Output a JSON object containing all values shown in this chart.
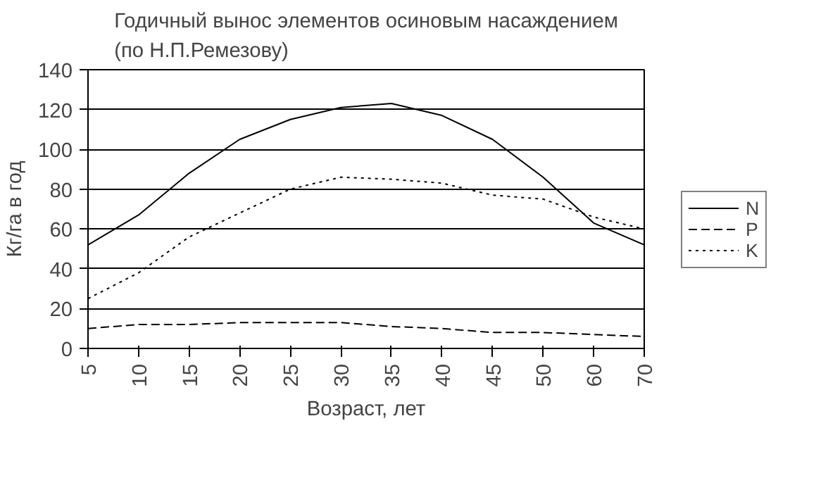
{
  "chart_data": {
    "type": "line",
    "title": "Годичный вынос элементов осиновым насаждением\n(по Н.П.Ремезову)",
    "xlabel": "Возраст, лет",
    "ylabel": "Кг/га в год",
    "categories": [
      "5",
      "10",
      "15",
      "20",
      "25",
      "30",
      "35",
      "40",
      "45",
      "50",
      "60",
      "70"
    ],
    "ylim": [
      0,
      140
    ],
    "yticks": [
      0,
      20,
      40,
      60,
      80,
      100,
      120,
      140
    ],
    "grid": "y",
    "legend": "right",
    "series": [
      {
        "name": "N",
        "color": "#000000",
        "line_style": "solid",
        "values": [
          52,
          67,
          88,
          105,
          115,
          121,
          123,
          117,
          105,
          86,
          63,
          52
        ]
      },
      {
        "name": "P",
        "color": "#000000",
        "line_style": "dashed",
        "values": [
          10,
          12,
          12,
          13,
          13,
          13,
          11,
          10,
          8,
          8,
          7,
          6
        ]
      },
      {
        "name": "K",
        "color": "#000000",
        "line_style": "dotted",
        "values": [
          25,
          38,
          56,
          68,
          80,
          86,
          85,
          83,
          77,
          75,
          66,
          60
        ]
      }
    ]
  }
}
